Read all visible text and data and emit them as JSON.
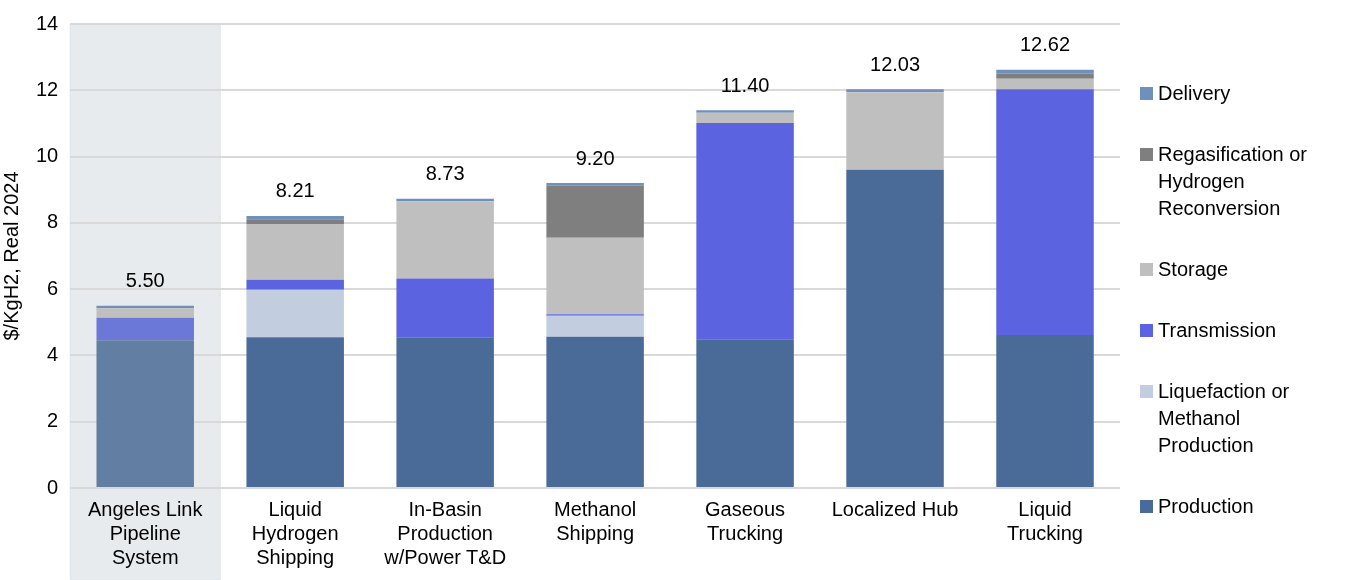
{
  "chart_data": {
    "type": "bar",
    "stacked": true,
    "ylabel": "$/KgH2, Real 2024",
    "categories": [
      "Angeles Link Pipeline System",
      "Liquid Hydrogen Shipping",
      "In-Basin Production w/Power T&D",
      "Methanol Shipping",
      "Gaseous Trucking",
      "Localized Hub",
      "Liquid Trucking"
    ],
    "series": [
      {
        "name": "Production",
        "color": "#4a6a98",
        "colors": [
          "#627ea2",
          "#4a6a98",
          "#4a6a98",
          "#4a6a98",
          "#4a6a98",
          "#4a6a98",
          "#4a6a98"
        ],
        "values": [
          4.46,
          4.55,
          4.55,
          4.56,
          4.49,
          9.6,
          4.62
        ]
      },
      {
        "name": "Liquefaction or Methanol Production",
        "color": "#c2cde0",
        "values": [
          null,
          1.43,
          null,
          0.64,
          null,
          null,
          null
        ]
      },
      {
        "name": "Transmission",
        "color": "#5b63e0",
        "colors": [
          "#6c78d8",
          "#5b63e0",
          "#5b63e0",
          "#5b63e0",
          "#5b63e0",
          "#5b63e0",
          "#5b63e0"
        ],
        "values": [
          0.68,
          0.3,
          1.77,
          0.04,
          6.52,
          null,
          7.41
        ]
      },
      {
        "name": "Storage",
        "color": "#bfbfbf",
        "values": [
          0.28,
          1.67,
          2.33,
          2.31,
          0.31,
          2.34,
          0.32
        ]
      },
      {
        "name": "Regasification or Hydrogen Reconversion",
        "color": "#7f7f7f",
        "values": [
          null,
          0.16,
          null,
          1.57,
          null,
          null,
          0.16
        ]
      },
      {
        "name": "Delivery",
        "color": "#6f8fbd",
        "values": [
          0.08,
          0.1,
          0.08,
          0.08,
          0.08,
          0.09,
          0.11
        ]
      }
    ],
    "totals": [
      "5.50",
      "8.21",
      "8.73",
      "9.20",
      "11.40",
      "12.03",
      "12.62"
    ],
    "bands": [
      {
        "axis": "x",
        "from": "Angeles Link Pipeline System",
        "to": "Angeles Link Pipeline System",
        "color": "#e8ebed"
      }
    ],
    "ylim": [
      0,
      14
    ],
    "yticks": [
      0,
      2,
      4,
      6,
      8,
      10,
      12,
      14
    ],
    "grid": "y",
    "legend": "right"
  }
}
